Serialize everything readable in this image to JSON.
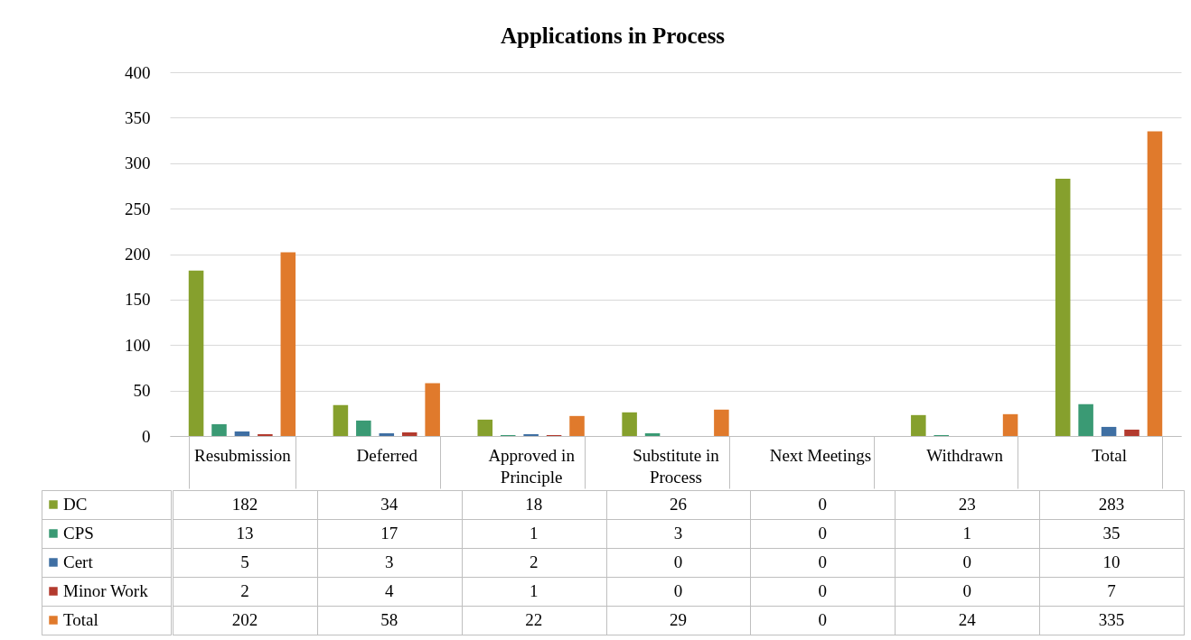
{
  "chart_data": {
    "type": "bar",
    "title": "Applications in Process",
    "categories": [
      "Resubmission",
      "Deferred",
      "Approved in Principle",
      "Substitute in Process",
      "Next Meetings",
      "Withdrawn",
      "Total"
    ],
    "series": [
      {
        "name": "DC",
        "color": "#86a02d",
        "values": [
          182,
          34,
          18,
          26,
          0,
          23,
          283
        ]
      },
      {
        "name": "CPS",
        "color": "#3a9a74",
        "values": [
          13,
          17,
          1,
          3,
          0,
          1,
          35
        ]
      },
      {
        "name": "Cert",
        "color": "#3f6fa3",
        "values": [
          5,
          3,
          2,
          0,
          0,
          0,
          10
        ]
      },
      {
        "name": "Minor Work",
        "color": "#b33a2e",
        "values": [
          2,
          4,
          1,
          0,
          0,
          0,
          7
        ]
      },
      {
        "name": "Total",
        "color": "#e07a2c",
        "values": [
          202,
          58,
          22,
          29,
          0,
          24,
          335
        ]
      }
    ],
    "ylim": [
      0,
      400
    ],
    "yticks": [
      0,
      50,
      100,
      150,
      200,
      250,
      300,
      350,
      400
    ],
    "grid": "y",
    "legend": "bottom",
    "data_labels": true
  }
}
